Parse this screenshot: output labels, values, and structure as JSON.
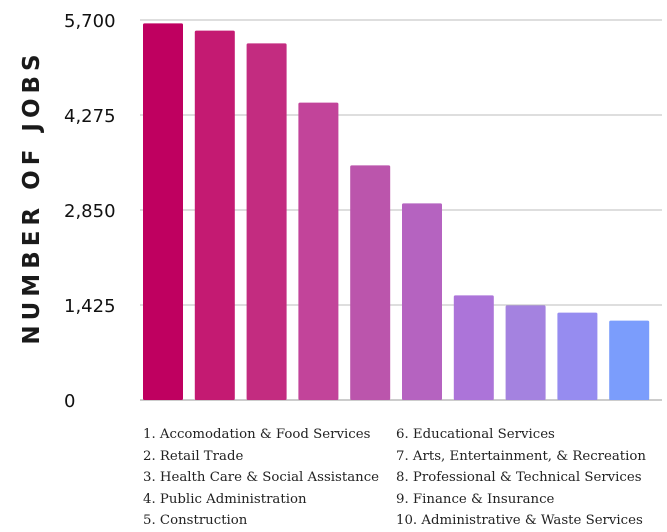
{
  "chart_data": {
    "type": "bar",
    "ylabel": "NUMBER OF JOBS",
    "xlabel": "",
    "yticks": [
      "0",
      "1,425",
      "2,850",
      "4,275",
      "5,700"
    ],
    "ylim": [
      0,
      5700
    ],
    "grid": true,
    "categories": [
      "1",
      "2",
      "3",
      "4",
      "5",
      "6",
      "7",
      "8",
      "9",
      "10"
    ],
    "values": [
      5650,
      5540,
      5350,
      4460,
      3520,
      2950,
      1570,
      1420,
      1310,
      1190
    ],
    "colors": [
      "#bf0060",
      "#c41a72",
      "#c32c80",
      "#c2449a",
      "#bb55ac",
      "#b563c0",
      "#ac74d9",
      "#a482e0",
      "#968cf0",
      "#7b9dfc"
    ],
    "legend": [
      "1. Accomodation & Food Services",
      "2. Retail Trade",
      "3. Health Care & Social Assistance",
      "4. Public Administration",
      "5. Construction",
      "6. Educational Services",
      "7. Arts, Entertainment, & Recreation",
      "8. Professional & Technical Services",
      "9. Finance & Insurance",
      "10. Administrative & Waste Services"
    ]
  }
}
